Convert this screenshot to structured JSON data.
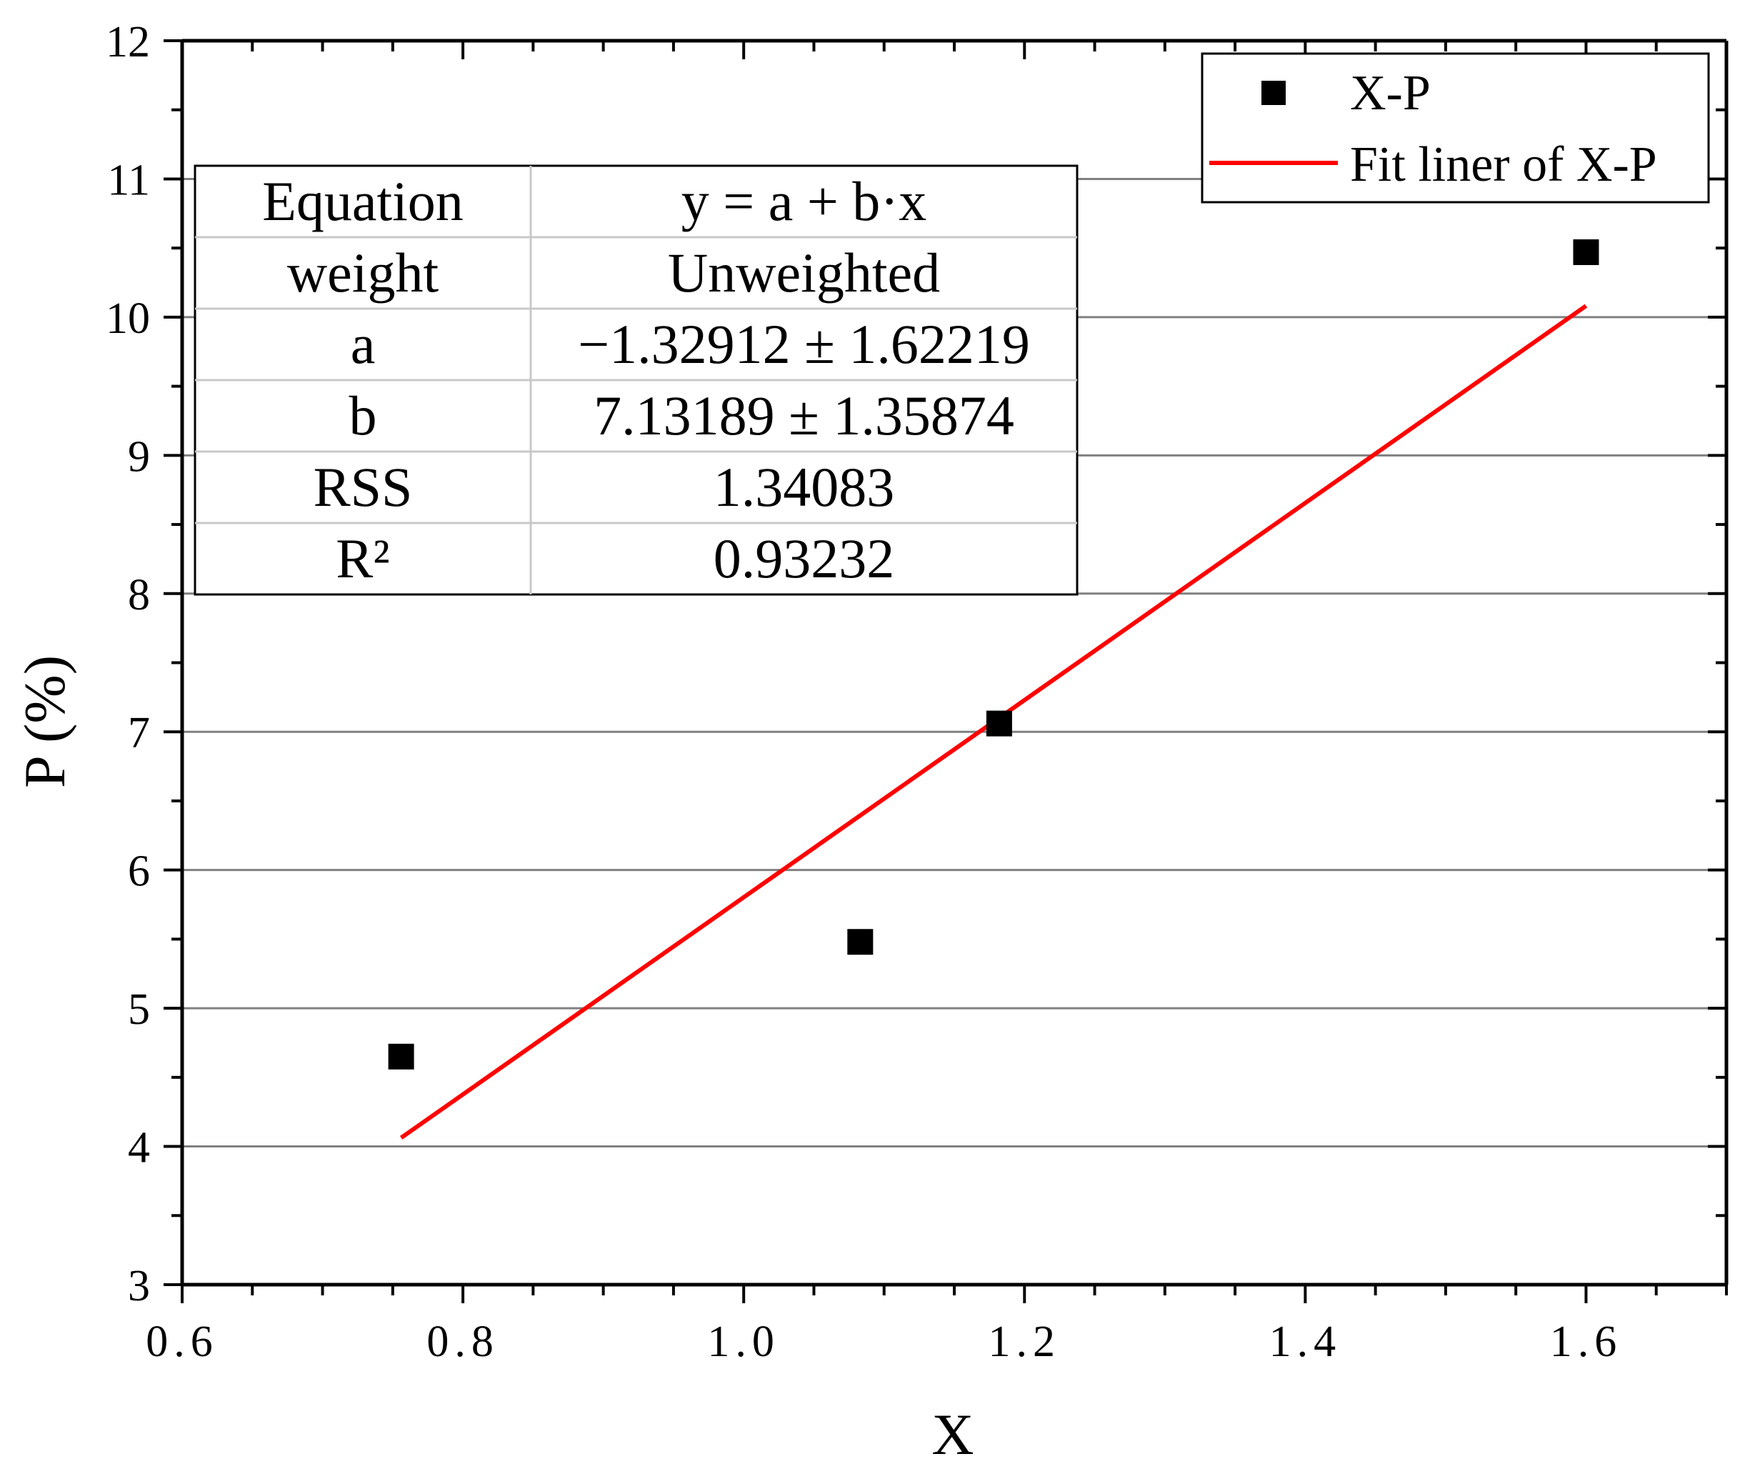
{
  "chart_data": {
    "type": "scatter",
    "title": "",
    "xlabel": "X",
    "ylabel": "P (%)",
    "xlim": [
      0.6,
      1.7
    ],
    "ylim": [
      3,
      12
    ],
    "x_ticks": [
      0.6,
      0.8,
      1.0,
      1.2,
      1.4,
      1.6
    ],
    "x_tick_labels": [
      "0.6",
      "0.8",
      "1.0",
      "1.2",
      "1.4",
      "1.6"
    ],
    "y_ticks": [
      3,
      4,
      5,
      6,
      7,
      8,
      9,
      10,
      11,
      12
    ],
    "y_tick_labels": [
      "3",
      "4",
      "5",
      "6",
      "7",
      "8",
      "9",
      "10",
      "11",
      "12"
    ],
    "grid": true,
    "series": [
      {
        "name": "X-P",
        "kind": "scatter",
        "marker": "square",
        "color": "#000000",
        "points": [
          {
            "x": 0.756,
            "y": 4.65
          },
          {
            "x": 1.083,
            "y": 5.48
          },
          {
            "x": 1.182,
            "y": 7.06
          },
          {
            "x": 1.6,
            "y": 10.47
          }
        ]
      },
      {
        "name": "Fit liner of X-P",
        "kind": "line",
        "color": "#ff0000",
        "intercept": -1.32912,
        "slope": 7.13189,
        "x_range": [
          0.756,
          1.6
        ]
      }
    ],
    "legend": {
      "placement": "top-right",
      "entries": [
        "X-P",
        "Fit liner of X-P"
      ]
    },
    "fit_table": {
      "rows": [
        {
          "label": "Equation",
          "value": "y = a + b·x"
        },
        {
          "label": "weight",
          "value": "Unweighted"
        },
        {
          "label": "a",
          "value": "−1.32912 ± 1.62219"
        },
        {
          "label": "b",
          "value": "7.13189 ± 1.35874"
        },
        {
          "label": "RSS",
          "value": "1.34083"
        },
        {
          "label": "R²",
          "value": "0.93232"
        }
      ]
    }
  }
}
